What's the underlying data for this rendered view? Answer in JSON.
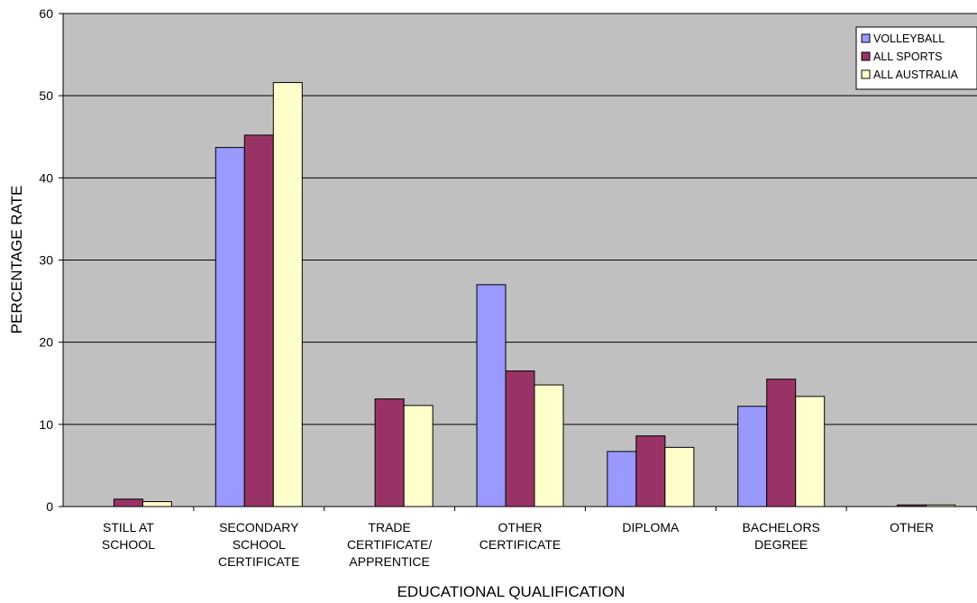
{
  "chart_data": {
    "type": "bar",
    "title": "",
    "xlabel": "EDUCATIONAL QUALIFICATION",
    "ylabel": "PERCENTAGE RATE",
    "ylim": [
      0,
      60
    ],
    "yticks": [
      0,
      10,
      20,
      30,
      40,
      50,
      60
    ],
    "grid": true,
    "legend_position": "top-right",
    "plot_background": "#c0c0c0",
    "categories": [
      [
        "STILL AT",
        "SCHOOL"
      ],
      [
        "SECONDARY",
        "SCHOOL",
        "CERTIFICATE"
      ],
      [
        "TRADE",
        "CERTIFICATE/",
        "APPRENTICE"
      ],
      [
        "OTHER",
        "CERTIFICATE"
      ],
      [
        "DIPLOMA"
      ],
      [
        "BACHELORS",
        "DEGREE"
      ],
      [
        "OTHER"
      ]
    ],
    "series": [
      {
        "name": "VOLLEYBALL",
        "color": "#9999ff",
        "values": [
          0,
          43.7,
          0,
          27.0,
          6.7,
          12.2,
          0
        ]
      },
      {
        "name": "ALL SPORTS",
        "color": "#993366",
        "values": [
          0.9,
          45.2,
          13.1,
          16.5,
          8.6,
          15.5,
          0.2
        ]
      },
      {
        "name": "ALL AUSTRALIA",
        "color": "#ffffcc",
        "values": [
          0.6,
          51.6,
          12.3,
          14.8,
          7.2,
          13.4,
          0.2
        ]
      }
    ]
  }
}
